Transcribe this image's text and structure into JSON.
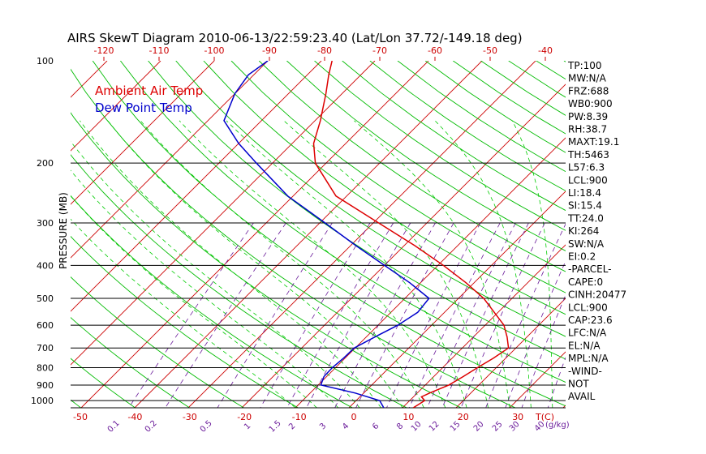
{
  "chart_data": {
    "type": "line",
    "title": "AIRS SkewT Diagram 2010-06-13/22:59:23.40 (Lat/Lon 37.72/-149.18 deg)",
    "ylabel": "PRESSURE (MB)",
    "pressure_ticks": [
      100,
      200,
      300,
      400,
      500,
      600,
      700,
      800,
      900,
      1000
    ],
    "temp_ticks_top": [
      -120,
      -110,
      -100,
      -90,
      -80,
      -70,
      -60,
      -50,
      -40
    ],
    "temp_ticks_bottom": [
      -50,
      -40,
      -30,
      -20,
      -10,
      0,
      10,
      20,
      30
    ],
    "temp_unit_label": "T(C)",
    "mixing_ratio_labels": [
      "0.1",
      "0.2",
      "0.5",
      "1",
      "1.5",
      "2",
      "3",
      "4",
      "6",
      "8",
      "10",
      "12",
      "15",
      "20",
      "25",
      "30",
      "40"
    ],
    "mixing_unit_label": "(g/kg)",
    "legend": [
      {
        "label": "Ambient Air Temp",
        "color": "#dd0000"
      },
      {
        "label": "Dew Point Temp",
        "color": "#0000cc"
      }
    ],
    "series": [
      {
        "name": "Ambient Air Temp",
        "color": "#dd0000",
        "points": [
          {
            "p": 1050,
            "t": 12.0
          },
          {
            "p": 1000,
            "t": 12.8
          },
          {
            "p": 975,
            "t": 11.5
          },
          {
            "p": 950,
            "t": 12.3
          },
          {
            "p": 900,
            "t": 14.4
          },
          {
            "p": 850,
            "t": 15.5
          },
          {
            "p": 800,
            "t": 16.5
          },
          {
            "p": 750,
            "t": 17.7
          },
          {
            "p": 700,
            "t": 18.6
          },
          {
            "p": 650,
            "t": 16.3
          },
          {
            "p": 600,
            "t": 13.5
          },
          {
            "p": 550,
            "t": 9.3
          },
          {
            "p": 500,
            "t": 4.7
          },
          {
            "p": 450,
            "t": -1.5
          },
          {
            "p": 400,
            "t": -9.0
          },
          {
            "p": 350,
            "t": -18.0
          },
          {
            "p": 300,
            "t": -29.0
          },
          {
            "p": 250,
            "t": -42.0
          },
          {
            "p": 200,
            "t": -52.0
          },
          {
            "p": 175,
            "t": -56.0
          },
          {
            "p": 150,
            "t": -59.0
          },
          {
            "p": 125,
            "t": -63.0
          },
          {
            "p": 110,
            "t": -66.0
          },
          {
            "p": 100,
            "t": -68.0
          }
        ]
      },
      {
        "name": "Dew Point Temp",
        "color": "#0000cc",
        "points": [
          {
            "p": 1050,
            "t": 6.5
          },
          {
            "p": 1000,
            "t": 4.4
          },
          {
            "p": 950,
            "t": -1.6
          },
          {
            "p": 900,
            "t": -9.5
          },
          {
            "p": 850,
            "t": -10.5
          },
          {
            "p": 800,
            "t": -10.6
          },
          {
            "p": 750,
            "t": -10.3
          },
          {
            "p": 700,
            "t": -10.2
          },
          {
            "p": 650,
            "t": -8.4
          },
          {
            "p": 600,
            "t": -6.3
          },
          {
            "p": 550,
            "t": -5.0
          },
          {
            "p": 500,
            "t": -5.5
          },
          {
            "p": 450,
            "t": -12.0
          },
          {
            "p": 400,
            "t": -20.0
          },
          {
            "p": 350,
            "t": -29.0
          },
          {
            "p": 300,
            "t": -39.0
          },
          {
            "p": 250,
            "t": -51.0
          },
          {
            "p": 200,
            "t": -63.0
          },
          {
            "p": 175,
            "t": -70.0
          },
          {
            "p": 150,
            "t": -77.0
          },
          {
            "p": 125,
            "t": -80.0
          },
          {
            "p": 110,
            "t": -81.0
          },
          {
            "p": 100,
            "t": -80.0
          }
        ]
      }
    ],
    "indices": [
      "TP:100",
      "MW:N/A",
      "FRZ:688",
      "WB0:900",
      "PW:8.39",
      "RH:38.7",
      "MAXT:19.1",
      "TH:5463",
      "L57:6.3",
      "LCL:900",
      "LI:18.4",
      "SI:15.4",
      "TT:24.0",
      "KI:264",
      "SW:N/A",
      "EI:0.2",
      "-PARCEL-",
      "CAPE:0",
      "CINH:20477",
      "LCL:900",
      "CAP:23.6",
      "LFC:N/A",
      "EL:N/A",
      "MPL:N/A",
      "-WIND-",
      "NOT",
      "AVAIL"
    ],
    "grid": true,
    "colors": {
      "isotherm": "#cc0000",
      "dry_adiabat": "#00bb00",
      "moist_adiabat": "#00cc00",
      "mixing_ratio": "#6a1b9a",
      "isobar": "#000000"
    }
  }
}
